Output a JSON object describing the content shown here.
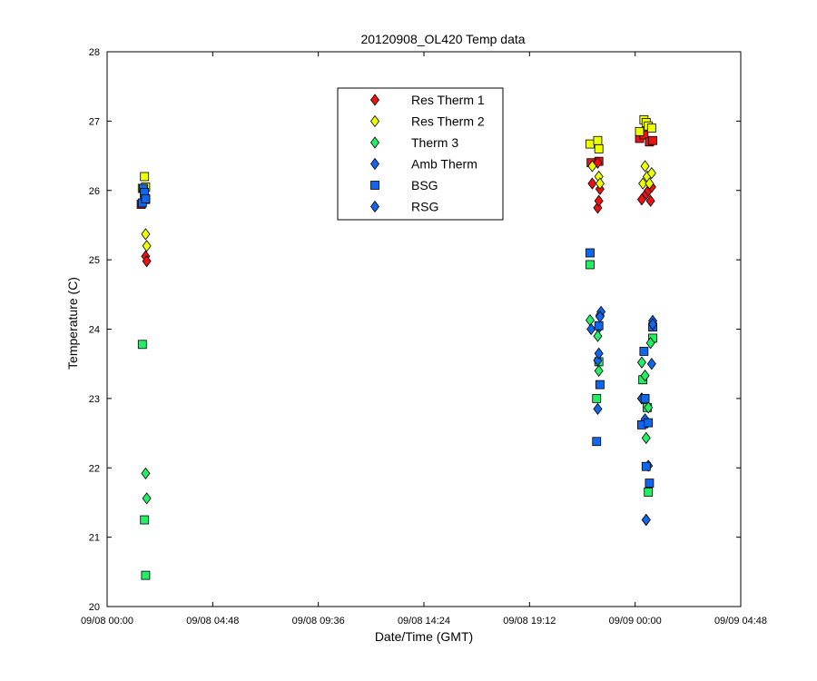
{
  "chart_data": {
    "type": "scatter",
    "title": "20120908_OL420 Temp data",
    "xlabel": "Date/Time (GMT)",
    "ylabel": "Temperature (C)",
    "x_units": "hours since 09/08 00:00",
    "xlim": [
      0,
      28.8
    ],
    "ylim": [
      20,
      28
    ],
    "x_ticks": [
      {
        "value": 0,
        "label": "09/08 00:00"
      },
      {
        "value": 4.8,
        "label": "09/08 04:48"
      },
      {
        "value": 9.6,
        "label": "09/08 09:36"
      },
      {
        "value": 14.4,
        "label": "09/08 14:24"
      },
      {
        "value": 19.2,
        "label": "09/08 19:12"
      },
      {
        "value": 24,
        "label": "09/09 00:00"
      },
      {
        "value": 28.8,
        "label": "09/09 04:48"
      }
    ],
    "y_ticks": [
      20,
      21,
      22,
      23,
      24,
      25,
      26,
      27,
      28
    ],
    "grid": false,
    "legend_position": "top-center",
    "series": [
      {
        "name": "Res Therm 1",
        "marker": "diamond",
        "color": "#ee1111",
        "points": [
          [
            1.75,
            25.05
          ],
          [
            1.8,
            24.98
          ],
          [
            22.05,
            26.1
          ],
          [
            22.3,
            25.75
          ],
          [
            22.35,
            25.85
          ],
          [
            22.4,
            26.02
          ],
          [
            22.3,
            26.4
          ],
          [
            24.3,
            25.87
          ],
          [
            24.5,
            25.95
          ],
          [
            24.6,
            26.0
          ],
          [
            24.7,
            25.85
          ],
          [
            24.75,
            26.05
          ]
        ]
      },
      {
        "name": "Res Therm 2",
        "marker": "diamond",
        "color": "#eeff00",
        "points": [
          [
            1.75,
            25.37
          ],
          [
            1.8,
            25.2
          ],
          [
            22.05,
            26.35
          ],
          [
            22.35,
            26.2
          ],
          [
            22.4,
            26.1
          ],
          [
            24.35,
            26.1
          ],
          [
            24.45,
            26.35
          ],
          [
            24.55,
            26.2
          ],
          [
            24.65,
            26.1
          ],
          [
            24.75,
            26.25
          ]
        ]
      },
      {
        "name": "Therm 3",
        "marker": "diamond",
        "color": "#22ee66",
        "points": [
          [
            1.75,
            21.92
          ],
          [
            1.8,
            21.56
          ],
          [
            21.95,
            24.13
          ],
          [
            22.3,
            23.9
          ],
          [
            22.35,
            23.4
          ],
          [
            22.4,
            24.2
          ],
          [
            24.3,
            23.52
          ],
          [
            24.45,
            23.33
          ],
          [
            24.5,
            22.43
          ],
          [
            24.6,
            22.87
          ],
          [
            24.7,
            23.8
          ]
        ]
      },
      {
        "name": "Amb Therm",
        "marker": "diamond",
        "color": "#1166ee",
        "points": [
          [
            22.0,
            24.0
          ],
          [
            22.3,
            22.85
          ],
          [
            22.35,
            23.65
          ],
          [
            22.45,
            24.25
          ],
          [
            24.3,
            23.0
          ],
          [
            24.45,
            22.7
          ],
          [
            24.5,
            21.25
          ],
          [
            24.6,
            22.03
          ],
          [
            24.75,
            23.5
          ],
          [
            24.8,
            24.12
          ]
        ]
      },
      {
        "name": "BSG",
        "marker": "square",
        "color": "#1166ee",
        "points": [
          [
            1.6,
            25.82
          ],
          [
            1.65,
            26.03
          ],
          [
            1.7,
            25.97
          ],
          [
            1.75,
            25.88
          ],
          [
            21.95,
            25.1
          ],
          [
            22.25,
            22.38
          ],
          [
            22.35,
            24.05
          ],
          [
            22.4,
            23.2
          ],
          [
            24.3,
            22.62
          ],
          [
            24.4,
            23.68
          ],
          [
            24.45,
            23.0
          ],
          [
            24.5,
            22.02
          ],
          [
            24.6,
            22.65
          ],
          [
            24.65,
            21.78
          ],
          [
            24.8,
            24.03
          ]
        ]
      },
      {
        "name": "RSG",
        "marker": "diamond",
        "color": "#1166ee",
        "points": [
          [
            22.4,
            24.18
          ],
          [
            24.5,
            21.25
          ],
          [
            24.8,
            24.07
          ]
        ]
      }
    ],
    "extra_markers": [
      {
        "marker": "square",
        "color": "#ee1111",
        "points": [
          [
            1.55,
            25.8
          ],
          [
            1.7,
            25.92
          ],
          [
            1.75,
            25.87
          ],
          [
            22.0,
            26.4
          ],
          [
            22.35,
            26.42
          ],
          [
            24.2,
            26.75
          ],
          [
            24.4,
            26.8
          ],
          [
            24.65,
            26.7
          ],
          [
            24.8,
            26.72
          ]
        ]
      },
      {
        "marker": "square",
        "color": "#eeff00",
        "points": [
          [
            1.7,
            26.2
          ],
          [
            1.75,
            26.05
          ],
          [
            1.6,
            26.03
          ],
          [
            21.95,
            26.67
          ],
          [
            22.3,
            26.72
          ],
          [
            22.35,
            26.6
          ],
          [
            24.2,
            26.85
          ],
          [
            24.4,
            27.02
          ],
          [
            24.5,
            26.98
          ],
          [
            24.6,
            26.93
          ],
          [
            24.75,
            26.9
          ]
        ]
      },
      {
        "marker": "square",
        "color": "#22ee66",
        "points": [
          [
            1.6,
            23.78
          ],
          [
            1.7,
            21.25
          ],
          [
            1.75,
            20.45
          ],
          [
            21.95,
            24.93
          ],
          [
            22.25,
            23.0
          ],
          [
            22.35,
            23.53
          ],
          [
            24.35,
            23.27
          ],
          [
            24.55,
            22.87
          ],
          [
            24.6,
            21.65
          ],
          [
            24.8,
            23.87
          ]
        ]
      },
      {
        "marker": "diamond",
        "color": "#1166ee",
        "points": [
          [
            22.35,
            24.02
          ],
          [
            22.3,
            23.55
          ],
          [
            24.55,
            22.65
          ],
          [
            24.3,
            23.0
          ]
        ]
      }
    ]
  }
}
